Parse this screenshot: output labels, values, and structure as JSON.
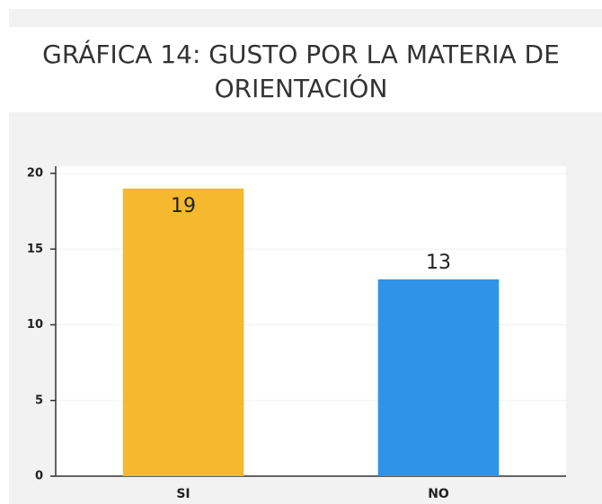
{
  "chart_data": {
    "type": "bar",
    "title": "GRÁFICA 14: GUSTO POR LA MATERIA DE ORIENTACIÓN",
    "categories": [
      "SI",
      "NO"
    ],
    "values": [
      19,
      13
    ],
    "colors": [
      "#f5b82e",
      "#2f94e8"
    ],
    "ylim": [
      0,
      20
    ],
    "yticks": [
      0,
      5,
      10,
      15,
      20
    ],
    "grid": true
  }
}
